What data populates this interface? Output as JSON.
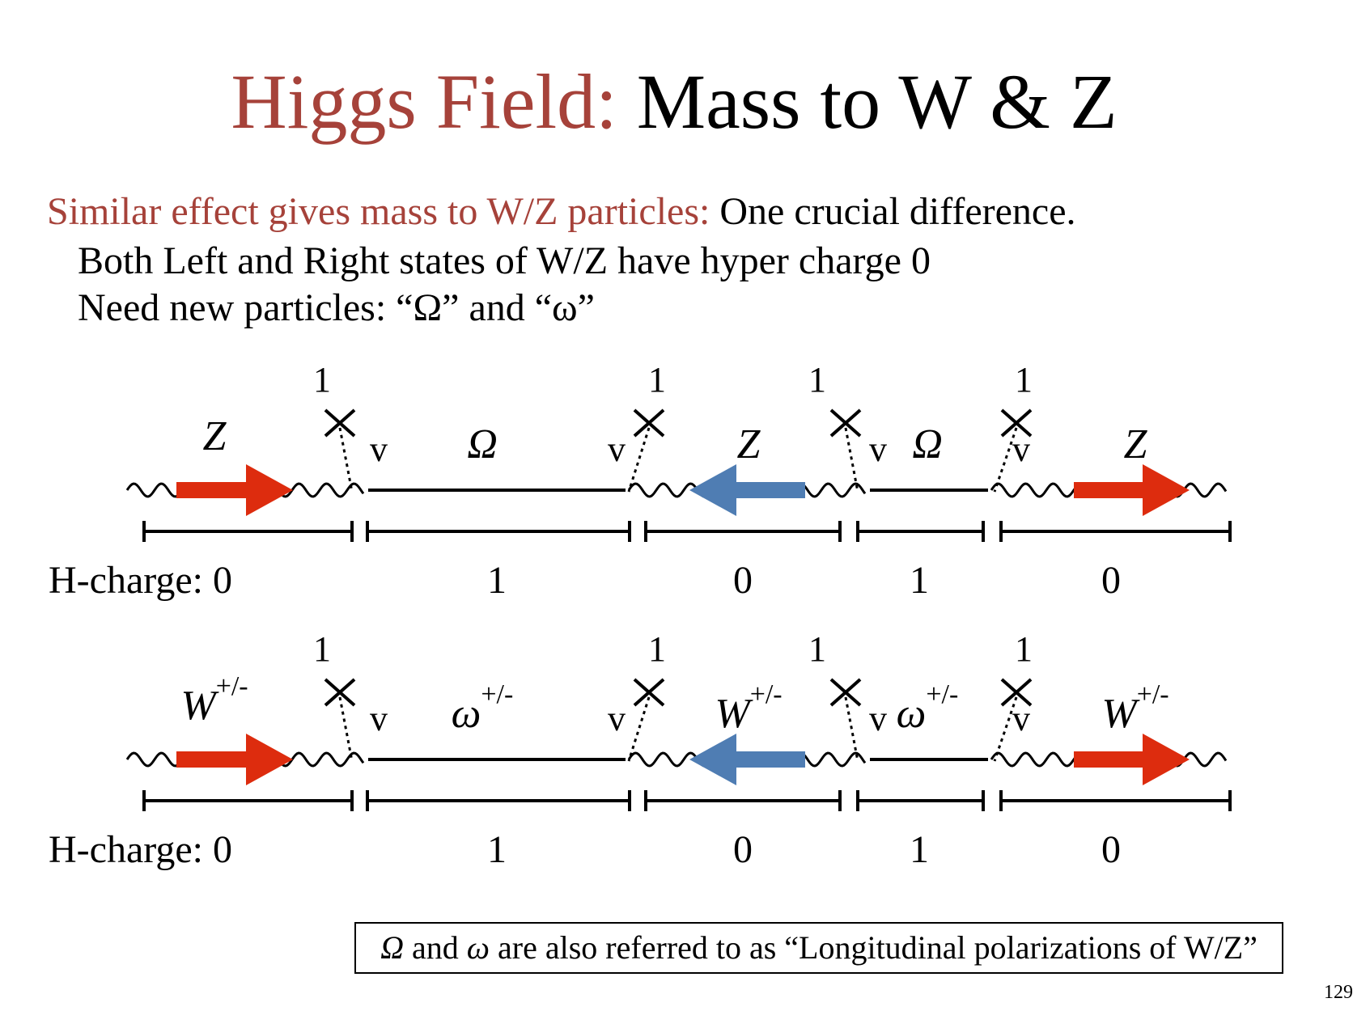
{
  "title": {
    "part1": "Higgs Field:",
    "part2": "Mass to W & Z"
  },
  "lines": {
    "line1_red": "Similar effect gives mass to W/Z particles:",
    "line1_black": "One crucial difference.",
    "line2": "Both Left and Right states of W/Z have hyper charge 0",
    "line3": "Need new particles: “Ω” and “ω”"
  },
  "diagrams": [
    {
      "vertex_label": "1",
      "vev_label": "v",
      "boson": "Z",
      "boson_sup": "",
      "new_particle": "Ω",
      "new_particle_sup": "",
      "hcharge_prefix": "H-charge: ",
      "hcharges": [
        "0",
        "1",
        "0",
        "1",
        "0"
      ]
    },
    {
      "vertex_label": "1",
      "vev_label": "v",
      "boson": "W",
      "boson_sup": "+/-",
      "new_particle": "ω",
      "new_particle_sup": "+/-",
      "hcharge_prefix": "H-charge: ",
      "hcharges": [
        "0",
        "1",
        "0",
        "1",
        "0"
      ]
    }
  ],
  "note": {
    "omega_upper": "Ω",
    "and": " and ",
    "omega_lower": "ω",
    "rest": " are also referred to as “Longitudinal polarizations of W/Z”"
  },
  "page_number": "129",
  "colors": {
    "title_red": "#a6423a",
    "arrow_red": "#dd2c0e",
    "arrow_blue": "#4f7db3"
  }
}
